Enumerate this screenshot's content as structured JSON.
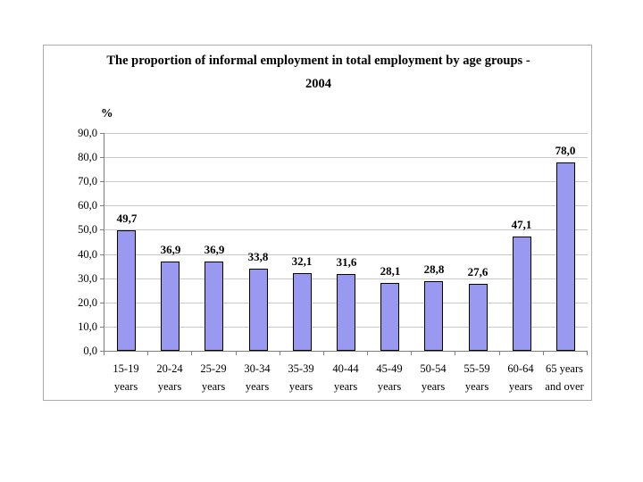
{
  "slide": {
    "background": "#FFFFFF"
  },
  "chart": {
    "title_line1": "The proportion of informal employment in total employment by age groups -",
    "title_line2": "2004",
    "unit_label": "%"
  },
  "chart_data": {
    "type": "bar",
    "title": "The proportion of informal employment in total employment by age groups - 2004",
    "xlabel": "",
    "ylabel": "%",
    "ylim": [
      0,
      90
    ],
    "grid": true,
    "legend": false,
    "categories": [
      "15-19 years",
      "20-24 years",
      "25-29 years",
      "30-34 years",
      "35-39 years",
      "40-44 years",
      "45-49 years",
      "50-54 years",
      "55-59 years",
      "60-64 years",
      "65 years and over"
    ],
    "categories_two_line": [
      [
        "15-19",
        "years"
      ],
      [
        "20-24",
        "years"
      ],
      [
        "25-29",
        "years"
      ],
      [
        "30-34",
        "years"
      ],
      [
        "35-39",
        "years"
      ],
      [
        "40-44",
        "years"
      ],
      [
        "45-49",
        "years"
      ],
      [
        "50-54",
        "years"
      ],
      [
        "55-59",
        "years"
      ],
      [
        "60-64",
        "years"
      ],
      [
        "65 years",
        "and over"
      ]
    ],
    "values": [
      49.7,
      36.9,
      36.9,
      33.8,
      32.1,
      31.6,
      28.1,
      28.8,
      27.6,
      47.1,
      78.0
    ],
    "value_labels": [
      "49,7",
      "36,9",
      "36,9",
      "33,8",
      "32,1",
      "31,6",
      "28,1",
      "28,8",
      "27,6",
      "47,1",
      "78,0"
    ],
    "yticks": [
      0,
      10,
      20,
      30,
      40,
      50,
      60,
      70,
      80,
      90
    ],
    "ytick_labels": [
      "0,0",
      "10,0",
      "20,0",
      "30,0",
      "40,0",
      "50,0",
      "60,0",
      "70,0",
      "80,0",
      "90,0"
    ],
    "colors": {
      "bar_fill": "#9999F2",
      "bar_border": "#000000",
      "gridline": "#C9C9C9",
      "axis": "#7F7F7F",
      "frame_border": "#ABABAB",
      "text": "#000000"
    }
  }
}
